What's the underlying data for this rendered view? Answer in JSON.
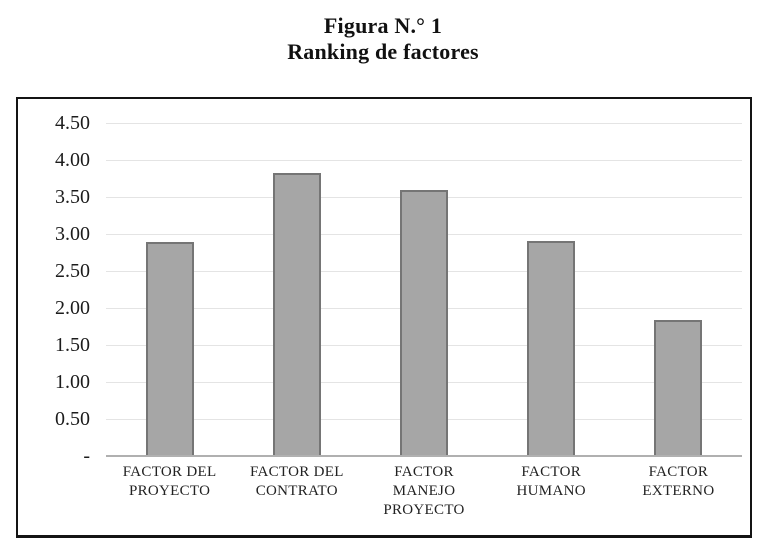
{
  "chart_data": {
    "type": "bar",
    "title": "Figura N.° 1",
    "subtitle": "Ranking de factores",
    "categories": [
      "FACTOR DEL\nPROYECTO",
      "FACTOR DEL\nCONTRATO",
      "FACTOR\nMANEJO\nPROYECTO",
      "FACTOR\nHUMANO",
      "FACTOR\nEXTERNO"
    ],
    "values": [
      2.89,
      3.82,
      3.6,
      2.91,
      1.84
    ],
    "xlabel": "",
    "ylabel": "",
    "ylim": [
      0,
      4.5
    ],
    "ytick_step": 0.5,
    "yticks": [
      {
        "value": 0.0,
        "label": "-"
      },
      {
        "value": 0.5,
        "label": "0.50"
      },
      {
        "value": 1.0,
        "label": "1.00"
      },
      {
        "value": 1.5,
        "label": "1.50"
      },
      {
        "value": 2.0,
        "label": "2.00"
      },
      {
        "value": 2.5,
        "label": "2.50"
      },
      {
        "value": 3.0,
        "label": "3.00"
      },
      {
        "value": 3.5,
        "label": "3.50"
      },
      {
        "value": 4.0,
        "label": "4.00"
      },
      {
        "value": 4.5,
        "label": "4.50"
      }
    ],
    "grid": true,
    "legend": false,
    "legend_position": "none",
    "colors": {
      "bar_fill": "#a6a6a6",
      "bar_border": "#757575",
      "gridline": "#e4e4e4",
      "axis_line": "#b0b0b0",
      "frame_border": "#141414",
      "text": "#1f1f1f"
    }
  }
}
